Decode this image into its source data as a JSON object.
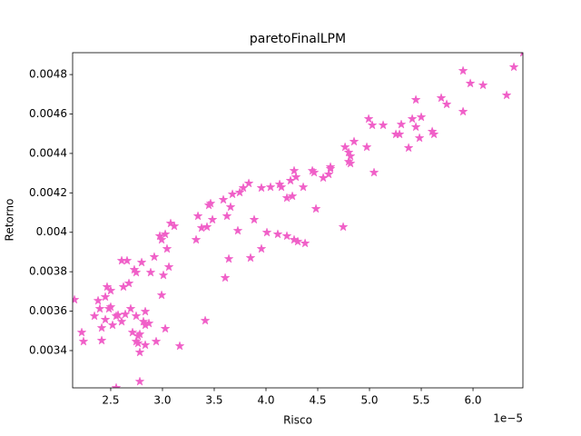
{
  "chart_data": {
    "type": "scatter",
    "title": "paretoFinalLPM",
    "xlabel": "Risco",
    "ylabel": "Retorno",
    "x_offset_label": "1e−5",
    "color": "#f060c8",
    "marker": "star",
    "xlim": [
      2.132,
      6.482
    ],
    "ylim": [
      0.003211,
      0.004911
    ],
    "xticks": [
      2.5,
      {
        "value": 3,
        "label": "3.0"
      },
      3.5,
      {
        "value": 4,
        "label": "4.0"
      },
      4.5,
      {
        "value": 5,
        "label": "5.0"
      },
      5.5,
      {
        "value": 6,
        "label": "6.0"
      }
    ],
    "yticks": [
      0.0034,
      0.0036,
      0.0038,
      0.004,
      0.0042,
      0.0044,
      0.0046,
      0.0048
    ],
    "x": [
      2.15,
      2.22,
      2.237,
      2.343,
      2.378,
      2.395,
      2.413,
      2.413,
      2.448,
      2.448,
      2.465,
      2.483,
      2.5,
      2.5,
      2.518,
      2.553,
      2.553,
      2.571,
      2.606,
      2.606,
      2.623,
      2.641,
      2.658,
      2.676,
      2.693,
      2.711,
      2.728,
      2.746,
      2.746,
      2.746,
      2.764,
      2.764,
      2.781,
      2.781,
      2.781,
      2.799,
      2.816,
      2.834,
      2.834,
      2.834,
      2.869,
      2.886,
      2.921,
      2.939,
      2.974,
      2.992,
      2.992,
      3.009,
      3.027,
      3.027,
      3.044,
      3.062,
      3.079,
      3.114,
      3.167,
      3.325,
      3.343,
      3.378,
      3.413,
      3.43,
      3.448,
      3.465,
      3.483,
      3.588,
      3.606,
      3.623,
      3.641,
      3.658,
      3.676,
      3.728,
      3.746,
      3.781,
      3.834,
      3.851,
      3.886,
      3.956,
      3.956,
      4.009,
      4.044,
      4.114,
      4.132,
      4.149,
      4.202,
      4.202,
      4.237,
      4.255,
      4.272,
      4.272,
      4.29,
      4.307,
      4.36,
      4.378,
      4.448,
      4.465,
      4.483,
      4.553,
      4.606,
      4.623,
      4.623,
      4.746,
      4.764,
      4.799,
      4.799,
      4.816,
      4.816,
      4.851,
      4.974,
      4.992,
      5.027,
      5.044,
      5.132,
      5.255,
      5.29,
      5.307,
      5.378,
      5.413,
      5.448,
      5.448,
      5.483,
      5.5,
      5.606,
      5.623,
      5.693,
      5.746,
      5.904,
      5.904,
      5.974,
      6.097,
      6.325,
      6.395,
      6.483
    ],
    "values": [
      0.003658,
      0.003492,
      0.003446,
      0.003575,
      0.003653,
      0.003612,
      0.003515,
      0.003451,
      0.003672,
      0.003557,
      0.003723,
      0.003612,
      0.003704,
      0.003621,
      0.003529,
      0.003575,
      0.003211,
      0.00358,
      0.003856,
      0.003547,
      0.003723,
      0.003584,
      0.003856,
      0.003741,
      0.003612,
      0.003492,
      0.00381,
      0.003796,
      0.003575,
      0.003446,
      0.003437,
      0.003474,
      0.003483,
      0.003391,
      0.003243,
      0.003847,
      0.003547,
      0.003428,
      0.003598,
      0.003529,
      0.003538,
      0.003796,
      0.003875,
      0.003446,
      0.003981,
      0.003962,
      0.003681,
      0.003782,
      0.00399,
      0.003511,
      0.003916,
      0.003824,
      0.004045,
      0.004031,
      0.003423,
      0.003962,
      0.004082,
      0.004022,
      0.003552,
      0.004027,
      0.004137,
      0.004146,
      0.004064,
      0.004165,
      0.003769,
      0.004082,
      0.003865,
      0.004128,
      0.004193,
      0.004008,
      0.004202,
      0.004225,
      0.004248,
      0.00387,
      0.004064,
      0.004225,
      0.003916,
      0.003999,
      0.004229,
      0.00399,
      0.004243,
      0.004229,
      0.004174,
      0.003981,
      0.004262,
      0.004183,
      0.003962,
      0.004312,
      0.00428,
      0.003953,
      0.004229,
      0.003944,
      0.004312,
      0.004303,
      0.004119,
      0.004276,
      0.004294,
      0.004331,
      0.004322,
      0.004027,
      0.004432,
      0.004358,
      0.004405,
      0.004386,
      0.004349,
      0.00446,
      0.004432,
      0.004575,
      0.004543,
      0.004303,
      0.004543,
      0.004497,
      0.004497,
      0.004547,
      0.004428,
      0.004575,
      0.004672,
      0.004534,
      0.004478,
      0.004584,
      0.004511,
      0.004497,
      0.004681,
      0.004649,
      0.004819,
      0.004612,
      0.004755,
      0.004746,
      0.004695,
      0.004838,
      0.004911
    ]
  }
}
